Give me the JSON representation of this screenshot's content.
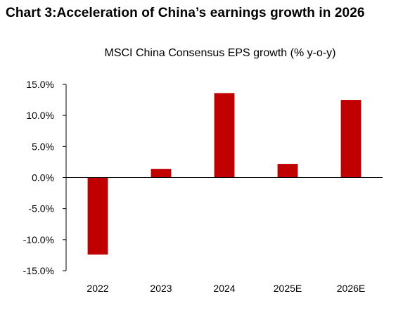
{
  "heading": {
    "label": "Chart 3:",
    "text": "Acceleration of China’s earnings growth in 2026"
  },
  "chart_data": {
    "type": "bar",
    "title": "MSCI China Consensus EPS growth (% y-o-y)",
    "xlabel": "",
    "ylabel": "",
    "categories": [
      "2022",
      "2023",
      "2024",
      "2025E",
      "2026E"
    ],
    "values": [
      -12.4,
      1.4,
      13.6,
      2.2,
      12.5
    ],
    "ylim": [
      -15,
      15
    ],
    "yticks": [
      15,
      10,
      5,
      0,
      -5,
      -10,
      -15
    ],
    "ytick_labels": [
      "15.0%",
      "10.0%",
      "5.0%",
      "0.0%",
      "-5.0%",
      "-10.0%",
      "-15.0%"
    ],
    "bar_color": "#c00000",
    "grid": false,
    "legend": "none"
  }
}
